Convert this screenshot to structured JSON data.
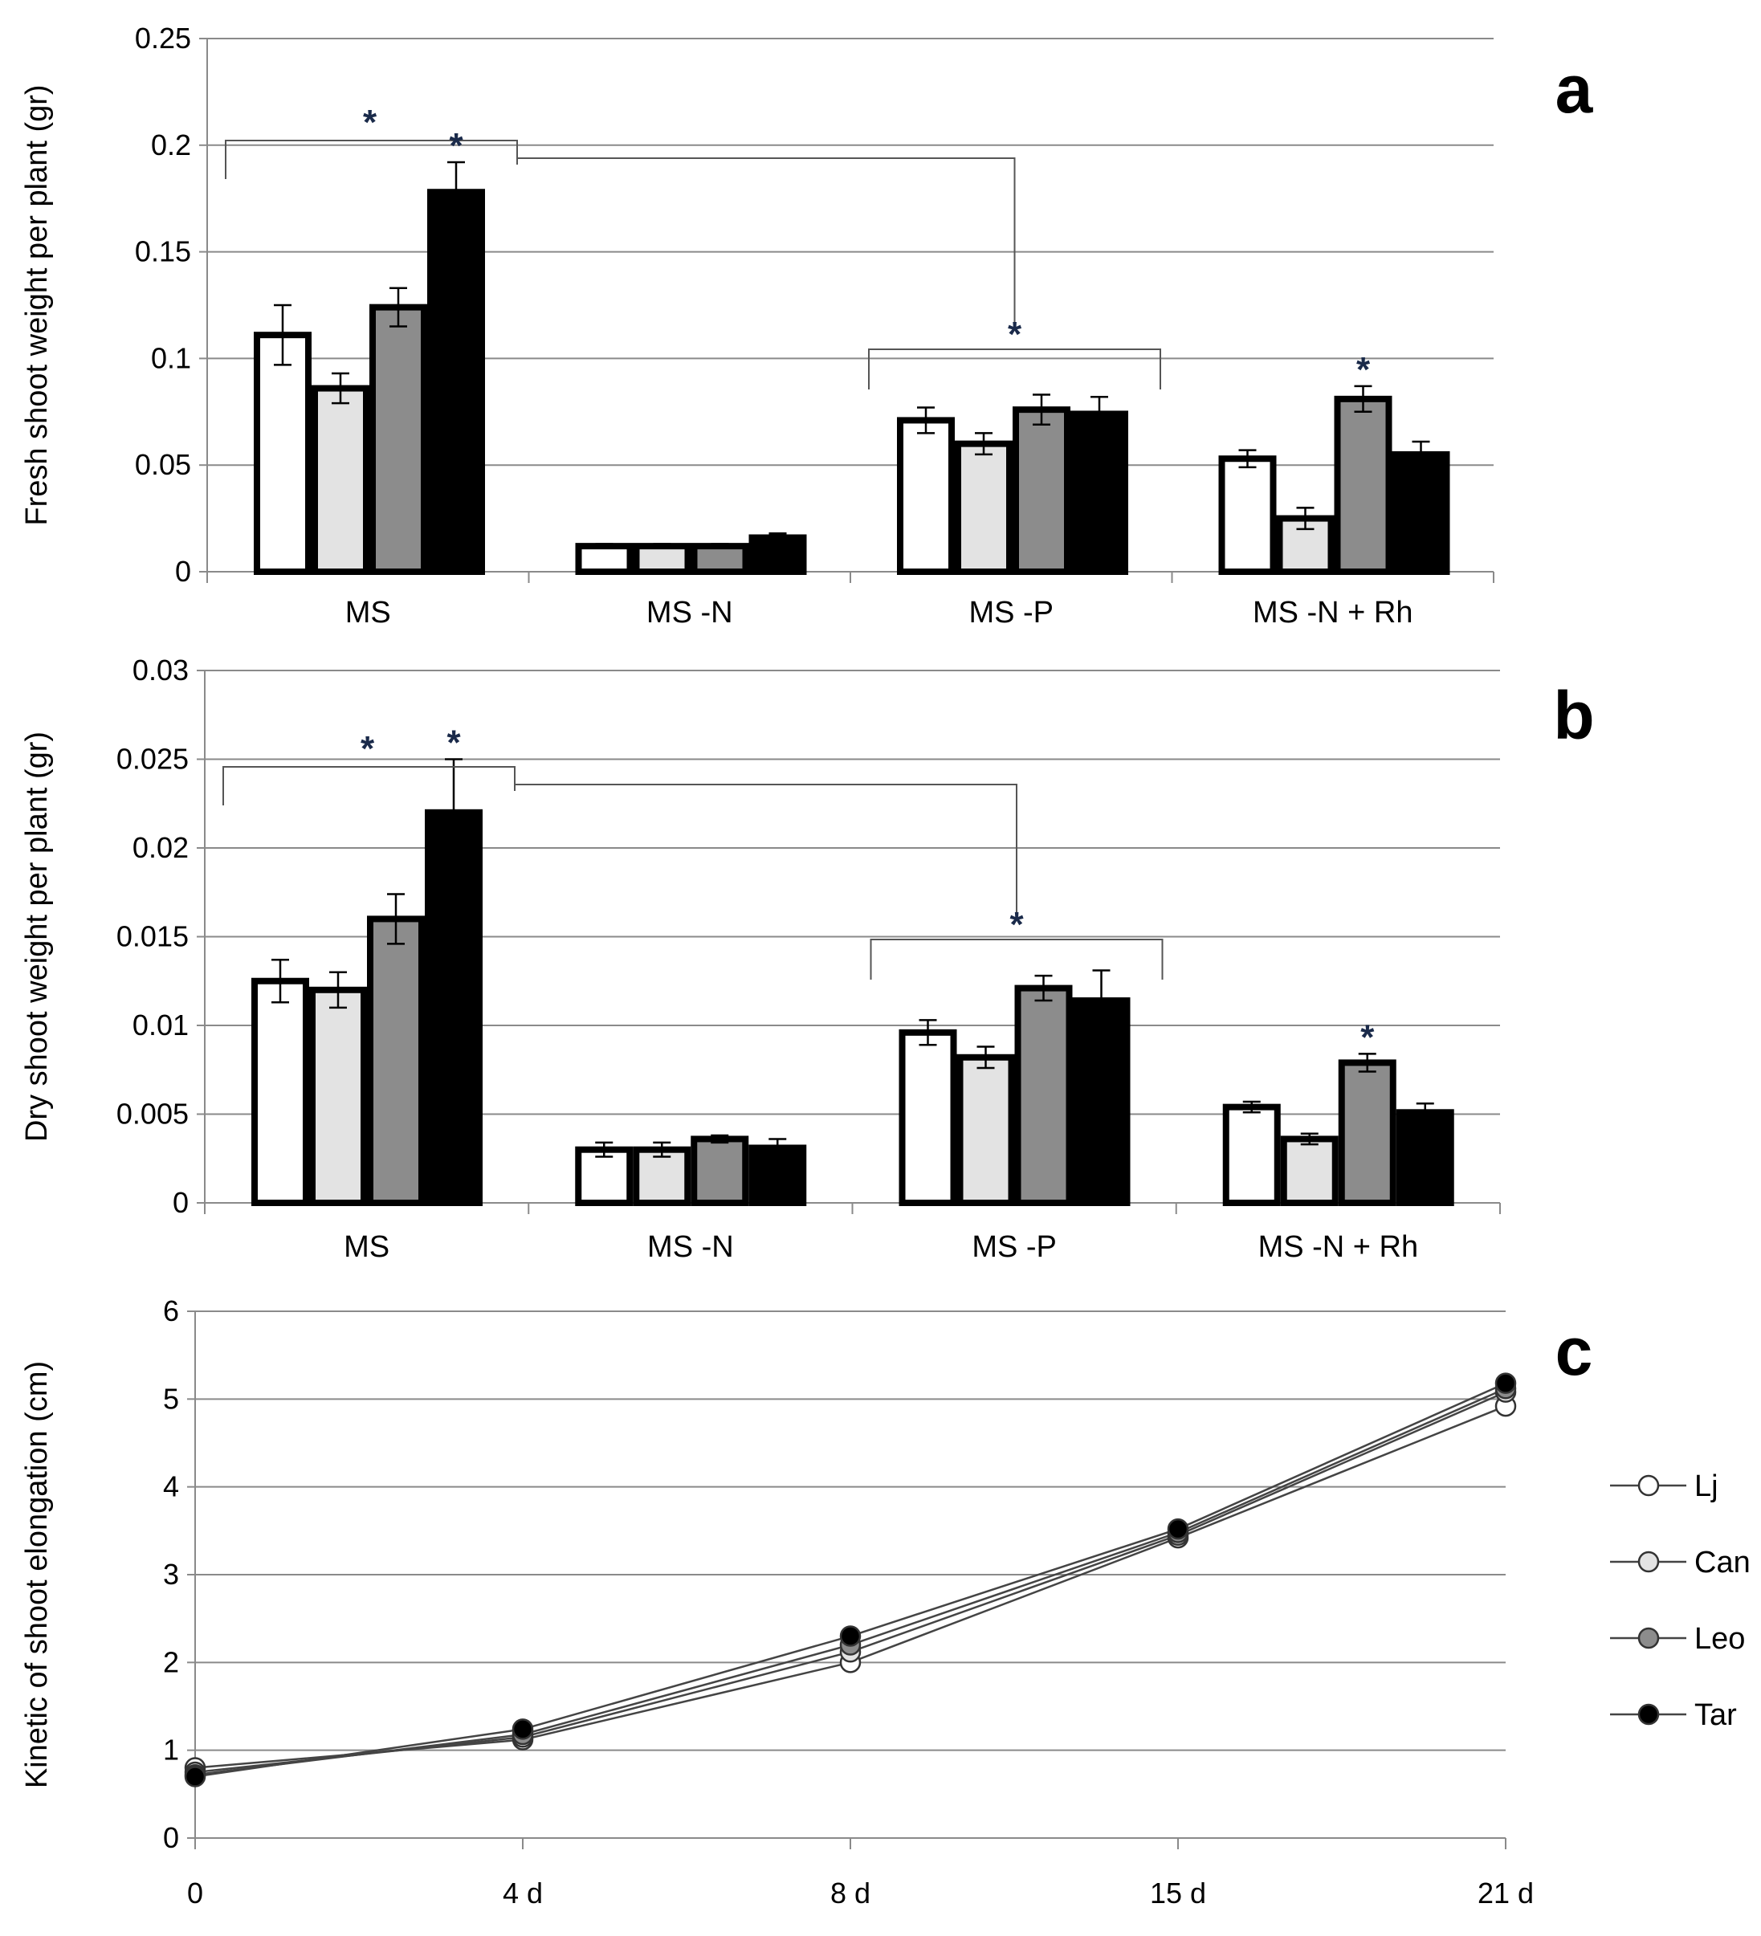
{
  "chart_data": [
    {
      "panel": "a",
      "type": "bar",
      "ylabel": "Fresh shoot weight per plant (gr)",
      "ylim": [
        0,
        0.25
      ],
      "yticks": [
        "0",
        "0.05",
        "0.1",
        "0.15",
        "0.2",
        "0.25"
      ],
      "categories": [
        "MS",
        "MS -N",
        "MS -P",
        "MS -N + Rh"
      ],
      "series": [
        {
          "name": "Lj",
          "color": "#ffffff",
          "values": [
            0.111,
            0.012,
            0.071,
            0.053
          ],
          "errors": [
            0.014,
            0.001,
            0.006,
            0.004
          ]
        },
        {
          "name": "Can",
          "color": "#e3e3e3",
          "values": [
            0.086,
            0.012,
            0.06,
            0.025
          ],
          "errors": [
            0.007,
            0.001,
            0.005,
            0.005
          ]
        },
        {
          "name": "Leo",
          "color": "#8c8c8c",
          "values": [
            0.124,
            0.012,
            0.076,
            0.081
          ],
          "errors": [
            0.009,
            0.001,
            0.007,
            0.006
          ]
        },
        {
          "name": "Tar",
          "color": "#000000",
          "values": [
            0.178,
            0.016,
            0.074,
            0.055
          ],
          "errors": [
            0.014,
            0.002,
            0.008,
            0.006
          ]
        }
      ],
      "annotations": [
        "*",
        "*",
        "*",
        "*"
      ]
    },
    {
      "panel": "b",
      "type": "bar",
      "ylabel": "Dry shoot weight per plant (gr)",
      "ylim": [
        0,
        0.03
      ],
      "yticks": [
        "0",
        "0.005",
        "0.01",
        "0.015",
        "0.02",
        "0.025",
        "0.03"
      ],
      "categories": [
        "MS",
        "MS -N",
        "MS -P",
        "MS -N + Rh"
      ],
      "series": [
        {
          "name": "Lj",
          "color": "#ffffff",
          "values": [
            0.0125,
            0.003,
            0.0096,
            0.0054
          ],
          "errors": [
            0.0012,
            0.0004,
            0.0007,
            0.0003
          ]
        },
        {
          "name": "Can",
          "color": "#e3e3e3",
          "values": [
            0.012,
            0.003,
            0.0082,
            0.0036
          ],
          "errors": [
            0.001,
            0.0004,
            0.0006,
            0.0003
          ]
        },
        {
          "name": "Leo",
          "color": "#8c8c8c",
          "values": [
            0.016,
            0.0036,
            0.0121,
            0.0079
          ],
          "errors": [
            0.0014,
            0.0002,
            0.0007,
            0.0005
          ]
        },
        {
          "name": "Tar",
          "color": "#000000",
          "values": [
            0.022,
            0.0031,
            0.0114,
            0.0051
          ],
          "errors": [
            0.003,
            0.0005,
            0.0017,
            0.0005
          ]
        }
      ],
      "annotations": [
        "*",
        "*",
        "*",
        "*"
      ]
    },
    {
      "panel": "c",
      "type": "line",
      "ylabel": "Kinetic of shoot elongation (cm)",
      "ylim": [
        0,
        6
      ],
      "yticks": [
        "0",
        "1",
        "2",
        "3",
        "4",
        "5",
        "6"
      ],
      "categories": [
        "0",
        "4 d",
        "8 d",
        "15 d",
        "21 d"
      ],
      "series": [
        {
          "name": "Lj",
          "color": "#ffffff",
          "values": [
            0.8,
            1.12,
            2.0,
            3.42,
            4.92
          ]
        },
        {
          "name": "Can",
          "color": "#e3e3e3",
          "values": [
            0.75,
            1.15,
            2.12,
            3.45,
            5.08
          ]
        },
        {
          "name": "Leo",
          "color": "#8c8c8c",
          "values": [
            0.72,
            1.18,
            2.2,
            3.48,
            5.12
          ]
        },
        {
          "name": "Tar",
          "color": "#000000",
          "values": [
            0.7,
            1.24,
            2.3,
            3.52,
            5.18
          ]
        }
      ],
      "legend": [
        "Lj",
        "Can",
        "Leo",
        "Tar"
      ]
    }
  ]
}
